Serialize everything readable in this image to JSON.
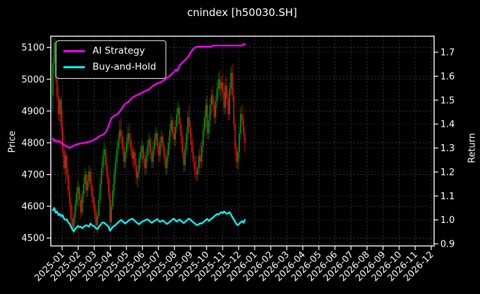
{
  "title": "cnindex [h50030.SH]",
  "chart_data": {
    "type": "candlestick",
    "title": "cnindex [h50030.SH]",
    "grid": true,
    "background": "#000000",
    "text_color": "#ffffff",
    "legend_position": "upper-left",
    "legend": [
      {
        "label": "AI Strategy",
        "color": "#ff00ff"
      },
      {
        "label": "Buy-and-Hold",
        "color": "#00ffff"
      }
    ],
    "left_axis": {
      "label": "Price",
      "ticks": [
        4500,
        4600,
        4700,
        4800,
        4900,
        5000,
        5100
      ],
      "ylim": [
        4475,
        5136
      ]
    },
    "right_axis": {
      "label": "Return",
      "ticks": [
        0.9,
        1.0,
        1.1,
        1.2,
        1.3,
        1.4,
        1.5,
        1.6,
        1.7
      ],
      "ylim": [
        0.891,
        1.767
      ]
    },
    "x_axis": {
      "tick_labels": [
        "2025-01",
        "2025-02",
        "2025-03",
        "2025-04",
        "2025-05",
        "2025-06",
        "2025-07",
        "2025-08",
        "2025-09",
        "2025-10",
        "2025-11",
        "2025-12",
        "2026-01",
        "2026-02",
        "2026-03",
        "2026-04",
        "2026-05",
        "2026-06",
        "2026-07",
        "2026-08",
        "2026-09",
        "2026-10",
        "2026-11",
        "2026-12"
      ],
      "data_span_note": "candles cover 2025-01 through 2025-12 only"
    },
    "colors": {
      "up": "#00a010",
      "down": "#ee1111",
      "ai_strategy": "#ff00ff",
      "buy_and_hold": "#00ffff",
      "grid_major": "#3d3d3d",
      "grid_minor": "#2a2a2a",
      "spine": "#ffffff"
    },
    "candles_ohlc": [
      [
        4950,
        5070,
        4900,
        5050
      ],
      [
        5050,
        5130,
        5010,
        5115
      ],
      [
        5115,
        5125,
        4985,
        5000
      ],
      [
        5000,
        5030,
        4930,
        4945
      ],
      [
        4945,
        4980,
        4870,
        4890
      ],
      [
        4890,
        4950,
        4865,
        4935
      ],
      [
        4935,
        4945,
        4830,
        4850
      ],
      [
        4850,
        4905,
        4755,
        4775
      ],
      [
        4775,
        4820,
        4700,
        4720
      ],
      [
        4720,
        4780,
        4670,
        4760
      ],
      [
        4760,
        4770,
        4680,
        4700
      ],
      [
        4700,
        4720,
        4630,
        4650
      ],
      [
        4650,
        4680,
        4590,
        4610
      ],
      [
        4610,
        4630,
        4540,
        4560
      ],
      [
        4560,
        4600,
        4515,
        4530
      ],
      [
        4530,
        4580,
        4510,
        4565
      ],
      [
        4565,
        4620,
        4545,
        4605
      ],
      [
        4605,
        4660,
        4585,
        4640
      ],
      [
        4640,
        4680,
        4600,
        4660
      ],
      [
        4660,
        4670,
        4600,
        4620
      ],
      [
        4620,
        4640,
        4560,
        4580
      ],
      [
        4580,
        4650,
        4570,
        4630
      ],
      [
        4630,
        4690,
        4610,
        4670
      ],
      [
        4670,
        4720,
        4640,
        4700
      ],
      [
        4700,
        4710,
        4630,
        4650
      ],
      [
        4650,
        4700,
        4630,
        4680
      ],
      [
        4680,
        4730,
        4660,
        4710
      ],
      [
        4710,
        4720,
        4650,
        4670
      ],
      [
        4670,
        4690,
        4610,
        4630
      ],
      [
        4630,
        4660,
        4590,
        4610
      ],
      [
        4610,
        4630,
        4560,
        4580
      ],
      [
        4580,
        4600,
        4520,
        4540
      ],
      [
        4540,
        4590,
        4515,
        4570
      ],
      [
        4570,
        4640,
        4560,
        4620
      ],
      [
        4620,
        4690,
        4610,
        4670
      ],
      [
        4670,
        4740,
        4660,
        4720
      ],
      [
        4720,
        4780,
        4700,
        4760
      ],
      [
        4760,
        4800,
        4730,
        4780
      ],
      [
        4780,
        4790,
        4710,
        4730
      ],
      [
        4730,
        4760,
        4670,
        4690
      ],
      [
        4690,
        4710,
        4620,
        4640
      ],
      [
        4640,
        4660,
        4520,
        4550
      ],
      [
        4550,
        4620,
        4530,
        4600
      ],
      [
        4600,
        4670,
        4590,
        4650
      ],
      [
        4650,
        4720,
        4630,
        4700
      ],
      [
        4700,
        4760,
        4680,
        4740
      ],
      [
        4740,
        4800,
        4720,
        4780
      ],
      [
        4780,
        4830,
        4760,
        4810
      ],
      [
        4810,
        4870,
        4790,
        4840
      ],
      [
        4840,
        4880,
        4800,
        4820
      ],
      [
        4820,
        4840,
        4760,
        4780
      ],
      [
        4780,
        4800,
        4720,
        4740
      ],
      [
        4740,
        4790,
        4720,
        4770
      ],
      [
        4770,
        4820,
        4750,
        4800
      ],
      [
        4800,
        4850,
        4780,
        4830
      ],
      [
        4830,
        4860,
        4790,
        4810
      ],
      [
        4810,
        4830,
        4760,
        4780
      ],
      [
        4780,
        4800,
        4730,
        4750
      ],
      [
        4750,
        4790,
        4720,
        4770
      ],
      [
        4770,
        4780,
        4710,
        4730
      ],
      [
        4730,
        4750,
        4670,
        4690
      ],
      [
        4690,
        4730,
        4660,
        4710
      ],
      [
        4710,
        4770,
        4690,
        4750
      ],
      [
        4750,
        4790,
        4720,
        4770
      ],
      [
        4770,
        4810,
        4740,
        4790
      ],
      [
        4790,
        4800,
        4730,
        4750
      ],
      [
        4750,
        4770,
        4700,
        4720
      ],
      [
        4720,
        4780,
        4700,
        4760
      ],
      [
        4760,
        4810,
        4740,
        4790
      ],
      [
        4790,
        4830,
        4760,
        4810
      ],
      [
        4810,
        4820,
        4750,
        4770
      ],
      [
        4770,
        4790,
        4720,
        4740
      ],
      [
        4740,
        4800,
        4720,
        4780
      ],
      [
        4780,
        4830,
        4760,
        4810
      ],
      [
        4810,
        4850,
        4790,
        4830
      ],
      [
        4830,
        4840,
        4770,
        4790
      ],
      [
        4790,
        4810,
        4740,
        4760
      ],
      [
        4760,
        4820,
        4740,
        4800
      ],
      [
        4800,
        4840,
        4780,
        4820
      ],
      [
        4820,
        4830,
        4770,
        4790
      ],
      [
        4790,
        4800,
        4730,
        4750
      ],
      [
        4750,
        4770,
        4700,
        4720
      ],
      [
        4720,
        4780,
        4700,
        4760
      ],
      [
        4760,
        4820,
        4740,
        4800
      ],
      [
        4800,
        4860,
        4780,
        4840
      ],
      [
        4840,
        4890,
        4820,
        4870
      ],
      [
        4870,
        4880,
        4810,
        4830
      ],
      [
        4830,
        4850,
        4790,
        4810
      ],
      [
        4810,
        4870,
        4790,
        4850
      ],
      [
        4850,
        4910,
        4830,
        4890
      ],
      [
        4890,
        4930,
        4860,
        4910
      ],
      [
        4910,
        4920,
        4840,
        4860
      ],
      [
        4860,
        4880,
        4800,
        4820
      ],
      [
        4820,
        4840,
        4750,
        4770
      ],
      [
        4770,
        4790,
        4710,
        4730
      ],
      [
        4730,
        4800,
        4710,
        4780
      ],
      [
        4780,
        4850,
        4760,
        4830
      ],
      [
        4830,
        4900,
        4810,
        4880
      ],
      [
        4880,
        4920,
        4830,
        4850
      ],
      [
        4850,
        4870,
        4790,
        4810
      ],
      [
        4810,
        4830,
        4750,
        4770
      ],
      [
        4770,
        4790,
        4720,
        4740
      ],
      [
        4740,
        4760,
        4690,
        4710
      ],
      [
        4710,
        4760,
        4680,
        4700
      ],
      [
        4700,
        4730,
        4680,
        4720
      ],
      [
        4720,
        4780,
        4700,
        4760
      ],
      [
        4760,
        4800,
        4720,
        4740
      ],
      [
        4740,
        4810,
        4720,
        4790
      ],
      [
        4790,
        4860,
        4770,
        4840
      ],
      [
        4840,
        4900,
        4820,
        4880
      ],
      [
        4880,
        4940,
        4850,
        4920
      ],
      [
        4920,
        4950,
        4810,
        4830
      ],
      [
        4830,
        4890,
        4810,
        4870
      ],
      [
        4870,
        4940,
        4850,
        4920
      ],
      [
        4920,
        4970,
        4890,
        4950
      ],
      [
        4950,
        4980,
        4900,
        4920
      ],
      [
        4920,
        4940,
        4860,
        4880
      ],
      [
        4880,
        4950,
        4860,
        4930
      ],
      [
        4930,
        4990,
        4910,
        4970
      ],
      [
        4970,
        5020,
        4940,
        5000
      ],
      [
        5000,
        5030,
        4950,
        4970
      ],
      [
        4970,
        5010,
        4930,
        4990
      ],
      [
        4990,
        5020,
        4940,
        4960
      ],
      [
        4960,
        4990,
        4890,
        4910
      ],
      [
        4910,
        5000,
        4890,
        4980
      ],
      [
        4980,
        5010,
        4920,
        4940
      ],
      [
        4940,
        4960,
        4870,
        4890
      ],
      [
        4890,
        4990,
        4870,
        4970
      ],
      [
        4970,
        5040,
        4950,
        5020
      ],
      [
        5020,
        5050,
        4930,
        4950
      ],
      [
        4950,
        4970,
        4840,
        4860
      ],
      [
        4860,
        4880,
        4760,
        4780
      ],
      [
        4780,
        4800,
        4720,
        4740
      ],
      [
        4740,
        4790,
        4715,
        4770
      ],
      [
        4770,
        4850,
        4750,
        4830
      ],
      [
        4830,
        4910,
        4810,
        4890
      ],
      [
        4890,
        4920,
        4850,
        4870
      ],
      [
        4870,
        4890,
        4810,
        4830
      ],
      [
        4830,
        4850,
        4770,
        4800
      ]
    ],
    "series": [
      {
        "name": "AI Strategy",
        "axis": "return",
        "color": "#ff00ff",
        "points": [
          [
            0,
            1.34
          ],
          [
            1,
            1.328
          ],
          [
            1.5,
            1.334
          ],
          [
            3,
            1.326
          ],
          [
            4.5,
            1.33
          ],
          [
            6,
            1.322
          ],
          [
            7.5,
            1.315
          ],
          [
            9,
            1.31
          ],
          [
            10.5,
            1.306
          ],
          [
            12,
            1.3
          ],
          [
            13.5,
            1.306
          ],
          [
            15,
            1.31
          ],
          [
            16.5,
            1.314
          ],
          [
            18,
            1.317
          ],
          [
            19.5,
            1.318
          ],
          [
            21,
            1.32
          ],
          [
            22.5,
            1.322
          ],
          [
            24,
            1.323
          ],
          [
            25.5,
            1.326
          ],
          [
            27,
            1.328
          ],
          [
            28.5,
            1.331
          ],
          [
            30,
            1.336
          ],
          [
            31.5,
            1.341
          ],
          [
            33,
            1.348
          ],
          [
            34.5,
            1.352
          ],
          [
            36,
            1.356
          ],
          [
            37.5,
            1.362
          ],
          [
            39,
            1.378
          ],
          [
            40.5,
            1.4
          ],
          [
            42,
            1.424
          ],
          [
            43.5,
            1.432
          ],
          [
            45,
            1.438
          ],
          [
            46.5,
            1.442
          ],
          [
            48,
            1.452
          ],
          [
            49.5,
            1.465
          ],
          [
            51,
            1.478
          ],
          [
            52.5,
            1.487
          ],
          [
            54,
            1.492
          ],
          [
            55.5,
            1.5
          ],
          [
            57,
            1.511
          ],
          [
            58.5,
            1.515
          ],
          [
            60,
            1.52
          ],
          [
            61.5,
            1.524
          ],
          [
            63,
            1.527
          ],
          [
            64.5,
            1.533
          ],
          [
            66,
            1.537
          ],
          [
            67.5,
            1.541
          ],
          [
            69,
            1.545
          ],
          [
            70.5,
            1.552
          ],
          [
            72,
            1.561
          ],
          [
            73.5,
            1.565
          ],
          [
            75,
            1.57
          ],
          [
            76.5,
            1.572
          ],
          [
            78,
            1.576
          ],
          [
            79.5,
            1.582
          ],
          [
            81,
            1.588
          ],
          [
            82.5,
            1.595
          ],
          [
            84,
            1.602
          ],
          [
            85.5,
            1.61
          ],
          [
            87,
            1.617
          ],
          [
            88.5,
            1.628
          ],
          [
            89.5,
            1.622
          ],
          [
            91,
            1.645
          ],
          [
            92.5,
            1.653
          ],
          [
            94,
            1.662
          ],
          [
            95.5,
            1.67
          ],
          [
            97,
            1.68
          ],
          [
            98.5,
            1.694
          ],
          [
            100,
            1.708
          ],
          [
            101.5,
            1.717
          ],
          [
            103,
            1.722
          ],
          [
            104.5,
            1.723
          ],
          [
            107,
            1.723
          ],
          [
            109.5,
            1.723
          ],
          [
            112,
            1.723
          ],
          [
            113.5,
            1.723
          ],
          [
            115,
            1.728
          ],
          [
            117,
            1.728
          ],
          [
            119.5,
            1.728
          ],
          [
            122,
            1.728
          ],
          [
            124.5,
            1.728
          ],
          [
            127,
            1.728
          ],
          [
            129.5,
            1.728
          ],
          [
            132,
            1.728
          ],
          [
            134.5,
            1.728
          ],
          [
            136,
            1.728
          ],
          [
            137,
            1.734
          ],
          [
            138,
            1.734
          ]
        ]
      },
      {
        "name": "Buy-and-Hold",
        "axis": "return",
        "color": "#00ffff",
        "values": [
          1.04,
          1.05,
          1.03,
          1.035,
          1.02,
          1.025,
          1.015,
          1.02,
          1.005,
          1.0,
          1.002,
          0.99,
          0.985,
          0.972,
          0.96,
          0.953,
          0.962,
          0.968,
          0.975,
          0.97,
          0.972,
          0.965,
          0.97,
          0.975,
          0.978,
          0.975,
          0.972,
          0.985,
          0.978,
          0.975,
          0.972,
          0.965,
          0.962,
          0.97,
          0.978,
          0.985,
          0.99,
          0.988,
          0.982,
          0.978,
          0.972,
          0.955,
          0.962,
          0.97,
          0.975,
          0.978,
          0.985,
          0.99,
          0.995,
          1.0,
          0.995,
          0.99,
          0.985,
          0.99,
          0.995,
          1.0,
          1.002,
          1.005,
          1.0,
          0.995,
          0.99,
          0.985,
          0.982,
          0.988,
          0.992,
          0.995,
          0.998,
          1.0,
          1.003,
          0.998,
          0.993,
          0.988,
          0.992,
          0.996,
          1.0,
          1.003,
          0.997,
          0.992,
          0.995,
          0.998,
          0.993,
          0.988,
          0.983,
          0.987,
          0.992,
          0.997,
          1.002,
          1.005,
          0.998,
          0.993,
          0.997,
          1.002,
          0.997,
          0.992,
          0.987,
          0.992,
          0.997,
          1.002,
          1.005,
          1.0,
          0.995,
          0.99,
          0.985,
          0.98,
          0.978,
          0.982,
          0.987,
          0.984,
          0.99,
          0.995,
          1.0,
          1.004,
          0.996,
          1.0,
          1.005,
          1.01,
          1.015,
          1.02,
          1.025,
          1.022,
          1.028,
          1.032,
          1.028,
          1.035,
          1.03,
          1.025,
          1.028,
          1.032,
          1.022,
          1.012,
          1.002,
          0.992,
          0.982,
          0.978,
          0.984,
          0.99,
          0.995,
          0.988,
          1.0
        ]
      }
    ]
  }
}
